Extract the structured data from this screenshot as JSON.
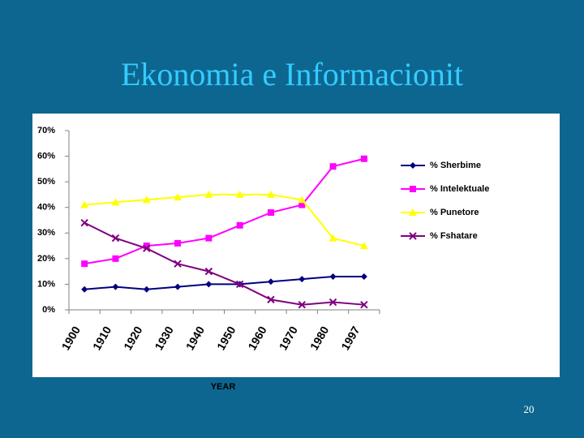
{
  "slide": {
    "title": "Ekonomia e Informacionit",
    "page_number": "20"
  },
  "chart_data": {
    "type": "line",
    "categories": [
      "1900",
      "1910",
      "1920",
      "1930",
      "1940",
      "1950",
      "1960",
      "1970",
      "1980",
      "1997"
    ],
    "x_label": "YEAR",
    "ylim": [
      0,
      70
    ],
    "yticks": [
      {
        "value": 0,
        "label": "0%"
      },
      {
        "value": 10,
        "label": "10%"
      },
      {
        "value": 20,
        "label": "20%"
      },
      {
        "value": 30,
        "label": "30%"
      },
      {
        "value": 40,
        "label": "40%"
      },
      {
        "value": 50,
        "label": "50%"
      },
      {
        "value": 60,
        "label": "60%"
      },
      {
        "value": 70,
        "label": "70%"
      }
    ],
    "grid": false,
    "legend": "right",
    "series": [
      {
        "name": "% Sherbime",
        "color": "#000080",
        "marker": "diamond",
        "values": [
          8,
          9,
          8,
          9,
          10,
          10,
          11,
          12,
          13,
          13
        ]
      },
      {
        "name": "% Intelektuale",
        "color": "#ff00ff",
        "marker": "square",
        "values": [
          18,
          20,
          25,
          26,
          28,
          33,
          38,
          41,
          56,
          59
        ]
      },
      {
        "name": "% Punetore",
        "color": "#ffff00",
        "marker": "triangle",
        "values": [
          41,
          42,
          43,
          44,
          45,
          45,
          45,
          43,
          28,
          25
        ]
      },
      {
        "name": "% Fshatare",
        "color": "#800080",
        "marker": "x",
        "values": [
          34,
          28,
          24,
          18,
          15,
          10,
          4,
          2,
          3,
          2
        ]
      }
    ]
  }
}
